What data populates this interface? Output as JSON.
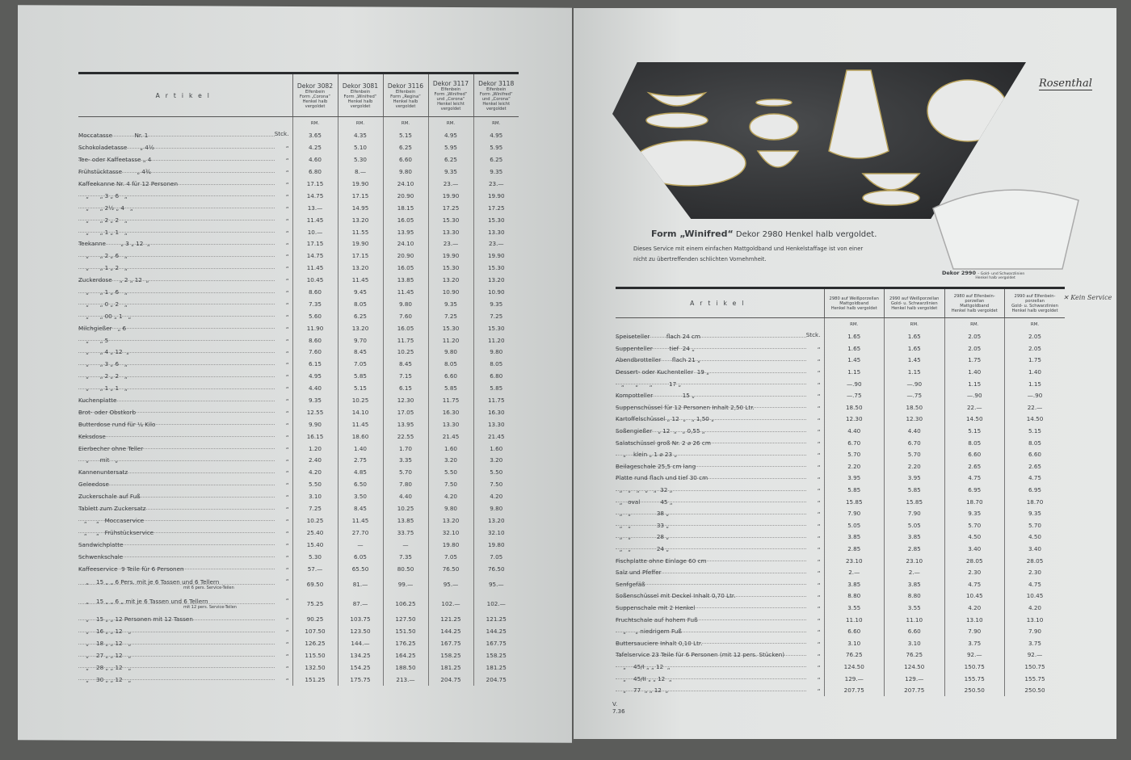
{
  "left": {
    "article_header": "Artikel",
    "columns": [
      {
        "dekor": "Dekor 3082",
        "desc": [
          "Elfenbein",
          "Form „Corona“",
          "Henkel halb",
          "vergoldet"
        ]
      },
      {
        "dekor": "Dekor 3081",
        "desc": [
          "Elfenbein",
          "Form „Winifred“",
          "Henkel halb",
          "vergoldet"
        ]
      },
      {
        "dekor": "Dekor 3116",
        "desc": [
          "Elfenbein",
          "Form „Regina“",
          "Henkel halb",
          "vergoldet"
        ]
      },
      {
        "dekor": "Dekor 3117",
        "desc": [
          "Elfenbein",
          "Form „Winifred“",
          "und „Corona“",
          "Henkel leicht",
          "vergoldet"
        ]
      },
      {
        "dekor": "Dekor 3118",
        "desc": [
          "Elfenbein",
          "Form „Winifred“",
          "und „Corona“",
          "Henkel leicht",
          "vergoldet"
        ]
      }
    ],
    "currency": "RM.",
    "rows": [
      {
        "a": "Moccatasse            Nr. 1",
        "u": "Stck.",
        "p": [
          "3.65",
          "4.35",
          "5.15",
          "4.95",
          "4.95"
        ]
      },
      {
        "a": "Schokoladetasse       „ 4½",
        "u": "„",
        "p": [
          "4.25",
          "5.10",
          "6.25",
          "5.95",
          "5.95"
        ]
      },
      {
        "a": "Tee- oder Kaffeetasse „ 4",
        "u": "„",
        "p": [
          "4.60",
          "5.30",
          "6.60",
          "6.25",
          "6.25"
        ]
      },
      {
        "a": "Frühstücktasse        „ 4¾",
        "u": "„",
        "p": [
          "6.80",
          "8.—",
          "9.80",
          "9.35",
          "9.35"
        ]
      },
      {
        "a": "Kaffeekanne Nr. 4 für 12 Personen",
        "u": "„",
        "p": [
          "17.15",
          "19.90",
          "24.10",
          "23.—",
          "23.—"
        ]
      },
      {
        "a": "    „      „ 3 „ 6   „",
        "u": "„",
        "p": [
          "14.75",
          "17.15",
          "20.90",
          "19.90",
          "19.90"
        ]
      },
      {
        "a": "    „      „ 2½ „ 4   „",
        "u": "„",
        "p": [
          "13.—",
          "14.95",
          "18.15",
          "17.25",
          "17.25"
        ]
      },
      {
        "a": "    „      „ 2 „ 2   „",
        "u": "„",
        "p": [
          "11.45",
          "13.20",
          "16.05",
          "15.30",
          "15.30"
        ]
      },
      {
        "a": "    „      „ 1 „ 1   „",
        "u": "„",
        "p": [
          "10.—",
          "11.55",
          "13.95",
          "13.30",
          "13.30"
        ]
      },
      {
        "a": "Teekanne        „ 3 „ 12  „",
        "u": "„",
        "p": [
          "17.15",
          "19.90",
          "24.10",
          "23.—",
          "23.—"
        ]
      },
      {
        "a": "    „      „ 2 „ 6   „",
        "u": "„",
        "p": [
          "14.75",
          "17.15",
          "20.90",
          "19.90",
          "19.90"
        ]
      },
      {
        "a": "    „      „ 1 „ 2   „",
        "u": "„",
        "p": [
          "11.45",
          "13.20",
          "16.05",
          "15.30",
          "15.30"
        ]
      },
      {
        "a": "Zuckerdose    „ 2 „ 12  „",
        "u": "„",
        "p": [
          "10.45",
          "11.45",
          "13.85",
          "13.20",
          "13.20"
        ]
      },
      {
        "a": "    „      „ 1 „ 6   „",
        "u": "„",
        "p": [
          "8.60",
          "9.45",
          "11.45",
          "10.90",
          "10.90"
        ]
      },
      {
        "a": "    „      „ 0 „ 2   „",
        "u": "„",
        "p": [
          "7.35",
          "8.05",
          "9.80",
          "9.35",
          "9.35"
        ]
      },
      {
        "a": "    „      „ 00 „ 1   „",
        "u": "„",
        "p": [
          "5.60",
          "6.25",
          "7.60",
          "7.25",
          "7.25"
        ]
      },
      {
        "a": "Milchgießer   „ 6",
        "u": "„",
        "p": [
          "11.90",
          "13.20",
          "16.05",
          "15.30",
          "15.30"
        ]
      },
      {
        "a": "    „      „ 5",
        "u": "„",
        "p": [
          "8.60",
          "9.70",
          "11.75",
          "11.20",
          "11.20"
        ]
      },
      {
        "a": "    „      „ 4 „ 12  „",
        "u": "„",
        "p": [
          "7.60",
          "8.45",
          "10.25",
          "9.80",
          "9.80"
        ]
      },
      {
        "a": "    „      „ 3 „ 6   „",
        "u": "„",
        "p": [
          "6.15",
          "7.05",
          "8.45",
          "8.05",
          "8.05"
        ]
      },
      {
        "a": "    „      „ 2 „ 2   „",
        "u": "„",
        "p": [
          "4.95",
          "5.85",
          "7.15",
          "6.60",
          "6.80"
        ]
      },
      {
        "a": "    „      „ 1 „ 1   „",
        "u": "„",
        "p": [
          "4.40",
          "5.15",
          "6.15",
          "5.85",
          "5.85"
        ]
      },
      {
        "a": "Kuchenplatte",
        "u": "„",
        "p": [
          "9.35",
          "10.25",
          "12.30",
          "11.75",
          "11.75"
        ]
      },
      {
        "a": "Brot- oder Obstkorb",
        "u": "„",
        "p": [
          "12.55",
          "14.10",
          "17.05",
          "16.30",
          "16.30"
        ]
      },
      {
        "a": "Butterdose rund für ¼ Kilo",
        "u": "„",
        "p": [
          "9.90",
          "11.45",
          "13.95",
          "13.30",
          "13.30"
        ]
      },
      {
        "a": "Keksdose",
        "u": "„",
        "p": [
          "16.15",
          "18.60",
          "22.55",
          "21.45",
          "21.45"
        ]
      },
      {
        "a": "Eierbecher ohne Teller",
        "u": "„",
        "p": [
          "1.20",
          "1.40",
          "1.70",
          "1.60",
          "1.60"
        ]
      },
      {
        "a": "    „      mit   „",
        "u": "„",
        "p": [
          "2.40",
          "2.75",
          "3.35",
          "3.20",
          "3.20"
        ]
      },
      {
        "a": "Kannenuntersatz",
        "u": "„",
        "p": [
          "4.20",
          "4.85",
          "5.70",
          "5.50",
          "5.50"
        ]
      },
      {
        "a": "Geleedose",
        "u": "„",
        "p": [
          "5.50",
          "6.50",
          "7.80",
          "7.50",
          "7.50"
        ]
      },
      {
        "a": "Zuckerschale auf Fuß",
        "u": "„",
        "p": [
          "3.10",
          "3.50",
          "4.40",
          "4.20",
          "4.20"
        ]
      },
      {
        "a": "Tablett zum Zuckersatz",
        "u": "„",
        "p": [
          "7.25",
          "8.45",
          "10.25",
          "9.80",
          "9.80"
        ]
      },
      {
        "a": "   „     „   Moccaservice",
        "u": "„",
        "p": [
          "10.25",
          "11.45",
          "13.85",
          "13.20",
          "13.20"
        ]
      },
      {
        "a": "   „     „   Frühstückservice",
        "u": "„",
        "p": [
          "25.40",
          "27.70",
          "33.75",
          "32.10",
          "32.10"
        ]
      },
      {
        "a": "Sandwichplatte",
        "u": "„",
        "p": [
          "15.40",
          "—",
          "—",
          "19.80",
          "19.80"
        ]
      },
      {
        "a": "Schwenkschale",
        "u": "„",
        "p": [
          "5.30",
          "6.05",
          "7.35",
          "7.05",
          "7.05"
        ]
      },
      {
        "a": "Kaffeeservice  9 Teile für 6 Personen",
        "u": "„",
        "p": [
          "57.—",
          "65.50",
          "80.50",
          "76.50",
          "76.50"
        ]
      },
      {
        "a": "    „    15 „ „ 6 Pers. mit je 6 Tassen und 6 Tellern",
        "s": "mit 6 pers. Service-Teilen",
        "u": "„",
        "p": [
          "69.50",
          "81.—",
          "99.—",
          "95.—",
          "95.—"
        ]
      },
      {
        "a": "    „    15 „ „ 6 „ mit je 6 Tassen und 6 Tellern",
        "s": "mit 12 pers. Service-Teilen",
        "u": "„",
        "p": [
          "75.25",
          "87.—",
          "106.25",
          "102.—",
          "102.—"
        ]
      },
      {
        "a": "    „    15 „ „ 12 Personen mit 12 Tassen",
        "u": "„",
        "p": [
          "90.25",
          "103.75",
          "127.50",
          "121.25",
          "121.25"
        ]
      },
      {
        "a": "    „    16 „ „ 12   „",
        "u": "„",
        "p": [
          "107.50",
          "123.50",
          "151.50",
          "144.25",
          "144.25"
        ]
      },
      {
        "a": "    „    18 „ „ 12   „",
        "u": "„",
        "p": [
          "126.25",
          "144.—",
          "176.25",
          "167.75",
          "167.75"
        ]
      },
      {
        "a": "    „    27 „ „ 12   „",
        "u": "„",
        "p": [
          "115.50",
          "134.25",
          "164.25",
          "158.25",
          "158.25"
        ]
      },
      {
        "a": "    „    28 „ „ 12   „",
        "u": "„",
        "p": [
          "132.50",
          "154.25",
          "188.50",
          "181.25",
          "181.25"
        ]
      },
      {
        "a": "    „    30 „ „ 12   „",
        "u": "„",
        "p": [
          "151.25",
          "175.75",
          "213.—",
          "204.75",
          "204.75"
        ]
      }
    ]
  },
  "right": {
    "logo": "Rosenthal",
    "title_bold": "Form „Winifred“",
    "title_rest": "Dekor 2980  Henkel halb vergoldet.",
    "description": [
      "Dieses Service mit einem einfachen Mattgoldband und Henkelstaffage ist von einer",
      "nicht zu übertreffenden schlichten Vornehmheit."
    ],
    "plate_caption_bold": "Dekor 2990",
    "plate_caption": [
      "– Gold- und Schwarzlinien",
      "Henkel halb vergoldet"
    ],
    "handwritten_note": "Kein Service",
    "article_header": "Artikel",
    "columns": [
      [
        "2980 auf Weißporzellan",
        "Mattgoldband",
        "Henkel halb vergoldet"
      ],
      [
        "2990 auf Weißporzellan",
        "Gold- u. Schwarzlinien",
        "Henkel halb vergoldet"
      ],
      [
        "2980 auf Elfenbein-",
        "porzellan",
        "Mattgoldband",
        "Henkel halb vergoldet"
      ],
      [
        "2990 auf Elfenbein-",
        "porzellan",
        "Gold- u. Schwarzlinien",
        "Henkel halb vergoldet"
      ]
    ],
    "currency": "RM.",
    "rows": [
      {
        "a": "Speiseteller         flach 24 cm",
        "u": "Stck.",
        "p": [
          "1.65",
          "1.65",
          "2.05",
          "2.05"
        ]
      },
      {
        "a": "Suppenteller         tief  24 „",
        "u": "„",
        "p": [
          "1.65",
          "1.65",
          "2.05",
          "2.05"
        ]
      },
      {
        "a": "Abendbrotteller      flach 21 „",
        "u": "„",
        "p": [
          "1.45",
          "1.45",
          "1.75",
          "1.75"
        ]
      },
      {
        "a": "Dessert- oder Kuchenteller  19 „",
        "u": "„",
        "p": [
          "1.15",
          "1.15",
          "1.40",
          "1.40"
        ]
      },
      {
        "a": "   „      „      „         17 „",
        "u": "„",
        "p": [
          "—.90",
          "—.90",
          "1.15",
          "1.15"
        ]
      },
      {
        "a": "Kompotteller                15 „",
        "u": "„",
        "p": [
          "—.75",
          "—.75",
          "—.90",
          "—.90"
        ]
      },
      {
        "a": "Suppenschüssel für 12 Personen Inhalt 2,50 Ltr.",
        "u": "„",
        "p": [
          "18.50",
          "18.50",
          "22.—",
          "22.—"
        ]
      },
      {
        "a": "Kartoffelschüssel „ 12  „   „ 1,50 „",
        "u": "„",
        "p": [
          "12.30",
          "12.30",
          "14.50",
          "14.50"
        ]
      },
      {
        "a": "Soßengießer   „ 12  „   „ 0,55 „",
        "u": "„",
        "p": [
          "4.40",
          "4.40",
          "5.15",
          "5.15"
        ]
      },
      {
        "a": "Salatschüssel groß Nr. 2 ⌀ 26 cm",
        "u": "„",
        "p": [
          "6.70",
          "6.70",
          "8.05",
          "8.05"
        ]
      },
      {
        "a": "    „    klein „ 1 ⌀ 23 „",
        "u": "„",
        "p": [
          "5.70",
          "5.70",
          "6.60",
          "6.60"
        ]
      },
      {
        "a": "Beilageschale 25,5 cm lang",
        "u": "„",
        "p": [
          "2.20",
          "2.20",
          "2.65",
          "2.65"
        ]
      },
      {
        "a": "Platte rund flach und tief 30 cm",
        "u": "„",
        "p": [
          "3.95",
          "3.95",
          "4.75",
          "4.75"
        ]
      },
      {
        "a": "  „   „   „   „   „  32 „",
        "u": "„",
        "p": [
          "5.85",
          "5.85",
          "6.95",
          "6.95"
        ]
      },
      {
        "a": "  „   oval           45 „",
        "u": "„",
        "p": [
          "15.85",
          "15.85",
          "18.70",
          "18.70"
        ]
      },
      {
        "a": "  „   „              38 „",
        "u": "„",
        "p": [
          "7.90",
          "7.90",
          "9.35",
          "9.35"
        ]
      },
      {
        "a": "  „   „              33 „",
        "u": "„",
        "p": [
          "5.05",
          "5.05",
          "5.70",
          "5.70"
        ]
      },
      {
        "a": "  „   „              28 „",
        "u": "„",
        "p": [
          "3.85",
          "3.85",
          "4.50",
          "4.50"
        ]
      },
      {
        "a": "  „   „              24 „",
        "u": "„",
        "p": [
          "2.85",
          "2.85",
          "3.40",
          "3.40"
        ]
      },
      {
        "a": "Fischplatte ohne Einlage 60 cm",
        "u": "„",
        "p": [
          "23.10",
          "23.10",
          "28.05",
          "28.05"
        ]
      },
      {
        "a": "Salz und Pfeffer",
        "u": "„",
        "p": [
          "2.—",
          "2.—",
          "2.30",
          "2.30"
        ]
      },
      {
        "a": "Senfgefäß",
        "u": "„",
        "p": [
          "3.85",
          "3.85",
          "4.75",
          "4.75"
        ]
      },
      {
        "a": "Soßenschüssel mit Deckel Inhalt 0,70 Ltr.",
        "u": "„",
        "p": [
          "8.80",
          "8.80",
          "10.45",
          "10.45"
        ]
      },
      {
        "a": "Suppenschale mit 2 Henkel",
        "u": "„",
        "p": [
          "3.55",
          "3.55",
          "4.20",
          "4.20"
        ]
      },
      {
        "a": "Fruchtschale auf hohem Fuß",
        "u": "„",
        "p": [
          "11.10",
          "11.10",
          "13.10",
          "13.10"
        ]
      },
      {
        "a": "    „     „ niedrigem Fuß",
        "u": "„",
        "p": [
          "6.60",
          "6.60",
          "7.90",
          "7.90"
        ]
      },
      {
        "a": "Buttersauciere Inhalt 0,10 Ltr.",
        "u": "„",
        "p": [
          "3.10",
          "3.10",
          "3.75",
          "3.75"
        ]
      },
      {
        "a": "Tafelservice 23 Teile für 6 Personen (mit 12 pers. Stücken)",
        "u": "„",
        "p": [
          "76.25",
          "76.25",
          "92.—",
          "92.—"
        ]
      },
      {
        "a": "    „    45/I „ „ 12  „",
        "u": "„",
        "p": [
          "124.50",
          "124.50",
          "150.75",
          "150.75"
        ]
      },
      {
        "a": "    „    45/II „ „ 12  „",
        "u": "„",
        "p": [
          "129.—",
          "129.—",
          "155.75",
          "155.75"
        ]
      },
      {
        "a": "    „    77  „ „ 12  „",
        "u": "„",
        "p": [
          "207.75",
          "207.75",
          "250.50",
          "250.50"
        ]
      }
    ],
    "footer": [
      "V.",
      "7.36"
    ]
  }
}
